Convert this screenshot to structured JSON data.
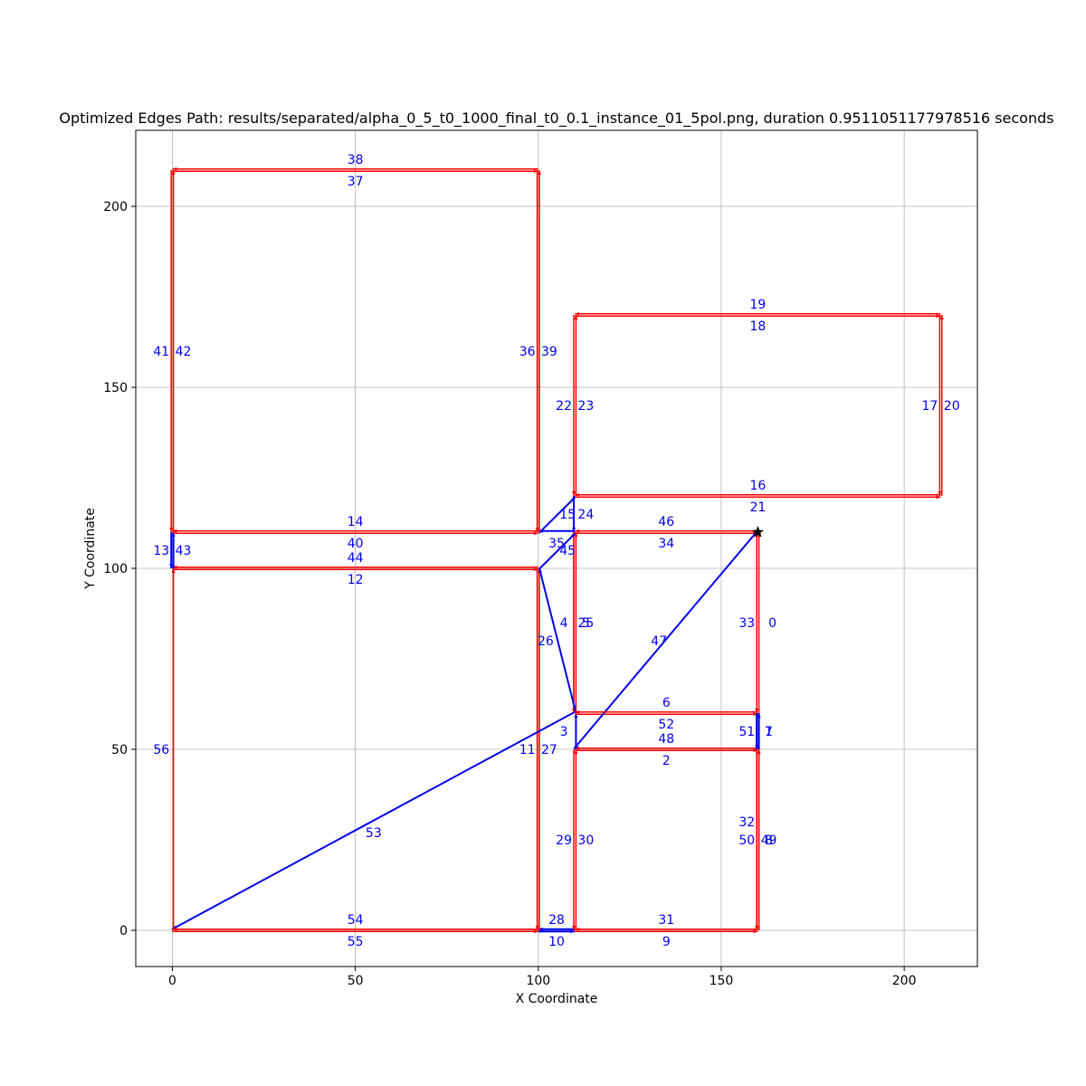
{
  "chart_data": {
    "type": "line",
    "title": "Optimized Edges Path: results/separated/alpha_0_5_t0_1000_final_t0_0.1_instance_01_5pol.png, duration 0.9511051177978516 seconds",
    "xlabel": "X Coordinate",
    "ylabel": "Y Coordinate",
    "xlim": [
      -10,
      220
    ],
    "ylim": [
      -10,
      221
    ],
    "xticks": [
      0,
      50,
      100,
      150,
      200
    ],
    "yticks": [
      0,
      50,
      100,
      150,
      200
    ],
    "grid": true,
    "colors": {
      "red": "#ff0000",
      "blue": "#0000ee",
      "label": "#0000ee",
      "grid": "#b0b0b0",
      "start": "#000000"
    },
    "start_marker": {
      "x": 160,
      "y": 110,
      "symbol": "star"
    },
    "edges": [
      {
        "id": 0,
        "from": [
          160,
          110
        ],
        "to": [
          160,
          60
        ],
        "color": "red",
        "label": "0",
        "lx": 164,
        "ly": 85
      },
      {
        "id": 1,
        "from": [
          160,
          60
        ],
        "to": [
          160,
          50
        ],
        "color": "blue",
        "label": "1",
        "lx": 163,
        "ly": 55
      },
      {
        "id": 2,
        "from": [
          160,
          50
        ],
        "to": [
          110,
          50
        ],
        "color": "red",
        "label": "2",
        "lx": 135,
        "ly": 47
      },
      {
        "id": 3,
        "from": [
          110,
          50
        ],
        "to": [
          110,
          60
        ],
        "color": "blue",
        "label": "3",
        "lx": 107,
        "ly": 55
      },
      {
        "id": 4,
        "from": [
          110,
          60
        ],
        "to": [
          110,
          110
        ],
        "color": "red",
        "label": "4",
        "lx": 107,
        "ly": 85
      },
      {
        "id": 5,
        "from": [
          110,
          110
        ],
        "to": [
          110,
          60
        ],
        "color": "red",
        "label": "5",
        "lx": 113,
        "ly": 85
      },
      {
        "id": 6,
        "from": [
          110,
          60
        ],
        "to": [
          160,
          60
        ],
        "color": "red",
        "label": "6",
        "lx": 135,
        "ly": 63
      },
      {
        "id": 7,
        "from": [
          160,
          60
        ],
        "to": [
          160,
          50
        ],
        "color": "blue",
        "label": "7",
        "lx": 163,
        "ly": 55
      },
      {
        "id": 8,
        "from": [
          160,
          50
        ],
        "to": [
          160,
          0
        ],
        "color": "red",
        "label": "8",
        "lx": 163,
        "ly": 25
      },
      {
        "id": 9,
        "from": [
          160,
          0
        ],
        "to": [
          110,
          0
        ],
        "color": "red",
        "label": "9",
        "lx": 135,
        "ly": -3
      },
      {
        "id": 10,
        "from": [
          110,
          0
        ],
        "to": [
          100,
          0
        ],
        "color": "blue",
        "label": "10",
        "lx": 105,
        "ly": -3
      },
      {
        "id": 11,
        "from": [
          100,
          0
        ],
        "to": [
          100,
          100
        ],
        "color": "red",
        "label": "11",
        "lx": 97,
        "ly": 50
      },
      {
        "id": 12,
        "from": [
          100,
          100
        ],
        "to": [
          0,
          100
        ],
        "color": "red",
        "label": "12",
        "lx": 50,
        "ly": 97
      },
      {
        "id": 13,
        "from": [
          0,
          100
        ],
        "to": [
          0,
          110
        ],
        "color": "blue",
        "label": "13",
        "lx": -3,
        "ly": 105
      },
      {
        "id": 14,
        "from": [
          0,
          110
        ],
        "to": [
          100,
          110
        ],
        "color": "red",
        "label": "14",
        "lx": 50,
        "ly": 113
      },
      {
        "id": 15,
        "from": [
          100,
          110
        ],
        "to": [
          110,
          120
        ],
        "color": "blue",
        "label": "15",
        "lx": 108,
        "ly": 115
      },
      {
        "id": 16,
        "from": [
          110,
          120
        ],
        "to": [
          210,
          120
        ],
        "color": "red",
        "label": "16",
        "lx": 160,
        "ly": 123
      },
      {
        "id": 17,
        "from": [
          210,
          120
        ],
        "to": [
          210,
          170
        ],
        "color": "red",
        "label": "17",
        "lx": 207,
        "ly": 145
      },
      {
        "id": 18,
        "from": [
          210,
          170
        ],
        "to": [
          110,
          170
        ],
        "color": "red",
        "label": "18",
        "lx": 160,
        "ly": 167
      },
      {
        "id": 19,
        "from": [
          110,
          170
        ],
        "to": [
          210,
          170
        ],
        "color": "red",
        "label": "19",
        "lx": 160,
        "ly": 173
      },
      {
        "id": 20,
        "from": [
          210,
          170
        ],
        "to": [
          210,
          120
        ],
        "color": "red",
        "label": "20",
        "lx": 213,
        "ly": 145
      },
      {
        "id": 21,
        "from": [
          210,
          120
        ],
        "to": [
          110,
          120
        ],
        "color": "red",
        "label": "21",
        "lx": 160,
        "ly": 117
      },
      {
        "id": 22,
        "from": [
          110,
          120
        ],
        "to": [
          110,
          170
        ],
        "color": "red",
        "label": "22",
        "lx": 107,
        "ly": 145
      },
      {
        "id": 23,
        "from": [
          110,
          170
        ],
        "to": [
          110,
          120
        ],
        "color": "red",
        "label": "23",
        "lx": 113,
        "ly": 145
      },
      {
        "id": 24,
        "from": [
          110,
          120
        ],
        "to": [
          110,
          110
        ],
        "color": "blue",
        "label": "24",
        "lx": 113,
        "ly": 115
      },
      {
        "id": 25,
        "from": [
          110,
          110
        ],
        "to": [
          110,
          60
        ],
        "color": "red",
        "label": "25",
        "lx": 113,
        "ly": 85
      },
      {
        "id": 26,
        "from": [
          110,
          60
        ],
        "to": [
          100,
          100
        ],
        "color": "blue",
        "label": "26",
        "lx": 102,
        "ly": 80
      },
      {
        "id": 27,
        "from": [
          100,
          100
        ],
        "to": [
          100,
          0
        ],
        "color": "red",
        "label": "27",
        "lx": 103,
        "ly": 50
      },
      {
        "id": 28,
        "from": [
          100,
          0
        ],
        "to": [
          110,
          0
        ],
        "color": "blue",
        "label": "28",
        "lx": 105,
        "ly": 3
      },
      {
        "id": 29,
        "from": [
          110,
          0
        ],
        "to": [
          110,
          50
        ],
        "color": "red",
        "label": "29",
        "lx": 107,
        "ly": 25
      },
      {
        "id": 30,
        "from": [
          110,
          50
        ],
        "to": [
          110,
          0
        ],
        "color": "red",
        "label": "30",
        "lx": 113,
        "ly": 25
      },
      {
        "id": 31,
        "from": [
          110,
          0
        ],
        "to": [
          160,
          0
        ],
        "color": "red",
        "label": "31",
        "lx": 135,
        "ly": 3
      },
      {
        "id": 32,
        "from": [
          160,
          0
        ],
        "to": [
          160,
          50
        ],
        "color": "red",
        "label": "32",
        "lx": 157,
        "ly": 30
      },
      {
        "id": 33,
        "from": [
          160,
          60
        ],
        "to": [
          160,
          110
        ],
        "color": "red",
        "label": "33",
        "lx": 157,
        "ly": 85
      },
      {
        "id": 34,
        "from": [
          160,
          110
        ],
        "to": [
          110,
          110
        ],
        "color": "red",
        "label": "34",
        "lx": 135,
        "ly": 107
      },
      {
        "id": 35,
        "from": [
          110,
          110
        ],
        "to": [
          100,
          110
        ],
        "color": "blue",
        "label": "35",
        "lx": 105,
        "ly": 107
      },
      {
        "id": 36,
        "from": [
          100,
          110
        ],
        "to": [
          100,
          210
        ],
        "color": "red",
        "label": "36",
        "lx": 97,
        "ly": 160
      },
      {
        "id": 37,
        "from": [
          100,
          210
        ],
        "to": [
          0,
          210
        ],
        "color": "red",
        "label": "37",
        "lx": 50,
        "ly": 207
      },
      {
        "id": 38,
        "from": [
          0,
          210
        ],
        "to": [
          100,
          210
        ],
        "color": "red",
        "label": "38",
        "lx": 50,
        "ly": 213
      },
      {
        "id": 39,
        "from": [
          100,
          210
        ],
        "to": [
          100,
          110
        ],
        "color": "red",
        "label": "39",
        "lx": 103,
        "ly": 160
      },
      {
        "id": 40,
        "from": [
          100,
          110
        ],
        "to": [
          0,
          110
        ],
        "color": "red",
        "label": "40",
        "lx": 50,
        "ly": 107
      },
      {
        "id": 41,
        "from": [
          0,
          110
        ],
        "to": [
          0,
          210
        ],
        "color": "red",
        "label": "41",
        "lx": -3,
        "ly": 160
      },
      {
        "id": 42,
        "from": [
          0,
          210
        ],
        "to": [
          0,
          110
        ],
        "color": "red",
        "label": "42",
        "lx": 3,
        "ly": 160
      },
      {
        "id": 43,
        "from": [
          0,
          110
        ],
        "to": [
          0,
          100
        ],
        "color": "blue",
        "label": "43",
        "lx": 3,
        "ly": 105
      },
      {
        "id": 44,
        "from": [
          0,
          100
        ],
        "to": [
          100,
          100
        ],
        "color": "red",
        "label": "44",
        "lx": 50,
        "ly": 103
      },
      {
        "id": 45,
        "from": [
          100,
          100
        ],
        "to": [
          110,
          110
        ],
        "color": "blue",
        "label": "45",
        "lx": 108,
        "ly": 105
      },
      {
        "id": 46,
        "from": [
          110,
          110
        ],
        "to": [
          160,
          110
        ],
        "color": "red",
        "label": "46",
        "lx": 135,
        "ly": 113
      },
      {
        "id": 47,
        "from": [
          160,
          110
        ],
        "to": [
          110,
          50
        ],
        "color": "blue",
        "label": "47",
        "lx": 133,
        "ly": 80
      },
      {
        "id": 48,
        "from": [
          110,
          50
        ],
        "to": [
          160,
          50
        ],
        "color": "red",
        "label": "48",
        "lx": 135,
        "ly": 53
      },
      {
        "id": 49,
        "from": [
          160,
          50
        ],
        "to": [
          160,
          0
        ],
        "color": "red",
        "label": "49",
        "lx": 163,
        "ly": 25
      },
      {
        "id": 50,
        "from": [
          160,
          0
        ],
        "to": [
          160,
          50
        ],
        "color": "red",
        "label": "50",
        "lx": 157,
        "ly": 25
      },
      {
        "id": 51,
        "from": [
          160,
          50
        ],
        "to": [
          160,
          60
        ],
        "color": "blue",
        "label": "51",
        "lx": 157,
        "ly": 55
      },
      {
        "id": 52,
        "from": [
          160,
          60
        ],
        "to": [
          110,
          60
        ],
        "color": "red",
        "label": "52",
        "lx": 135,
        "ly": 57
      },
      {
        "id": 53,
        "from": [
          110,
          60
        ],
        "to": [
          0,
          0
        ],
        "color": "blue",
        "label": "53",
        "lx": 55,
        "ly": 27
      },
      {
        "id": 54,
        "from": [
          0,
          0
        ],
        "to": [
          100,
          0
        ],
        "color": "red",
        "label": "54",
        "lx": 50,
        "ly": 3
      },
      {
        "id": 55,
        "from": [
          100,
          0
        ],
        "to": [
          0,
          0
        ],
        "color": "red",
        "label": "55",
        "lx": 50,
        "ly": -3
      },
      {
        "id": 56,
        "from": [
          0,
          0
        ],
        "to": [
          0,
          100
        ],
        "color": "red",
        "label": "56",
        "lx": -3,
        "ly": 50
      }
    ]
  }
}
